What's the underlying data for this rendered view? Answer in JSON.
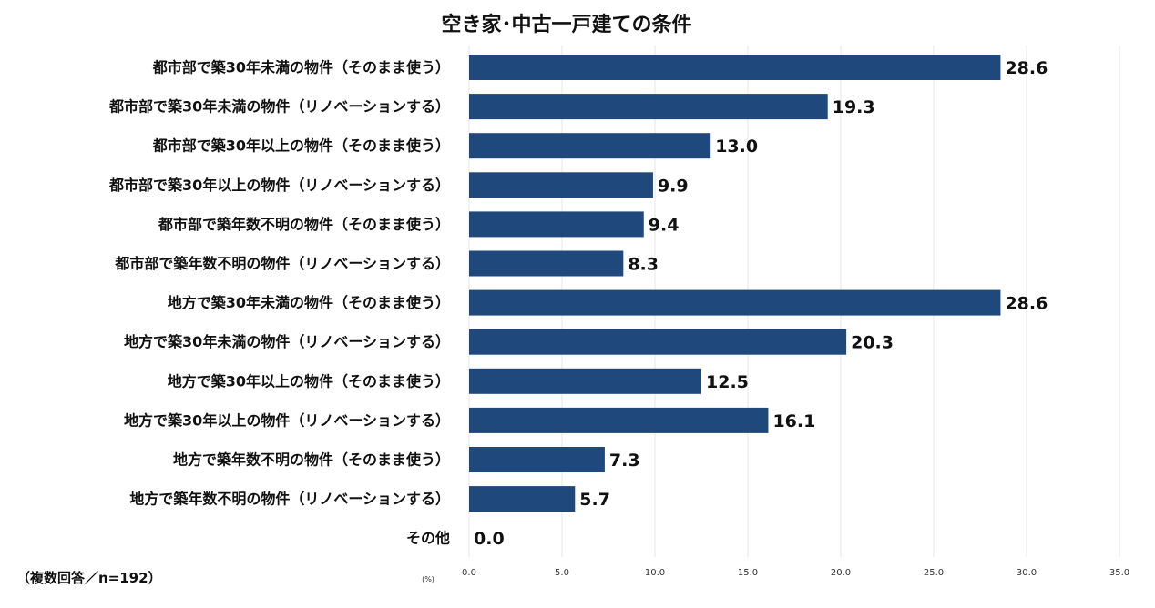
{
  "chart_data": {
    "type": "bar",
    "orientation": "horizontal",
    "title": "空き家･中古一戸建ての条件",
    "categories": [
      "都市部で築30年未満の物件（そのまま使う）",
      "都市部で築30年未満の物件（リノベーションする）",
      "都市部で築30年以上の物件（そのまま使う）",
      "都市部で築30年以上の物件（リノベーションする）",
      "都市部で築年数不明の物件（そのまま使う）",
      "都市部で築年数不明の物件（リノベーションする）",
      "地方で築30年未満の物件（そのまま使う）",
      "地方で築30年未満の物件（リノベーションする）",
      "地方で築30年以上の物件（そのまま使う）",
      "地方で築30年以上の物件（リノベーションする）",
      "地方で築年数不明の物件（そのまま使う）",
      "地方で築年数不明の物件（リノベーションする）",
      "その他"
    ],
    "values": [
      28.6,
      19.3,
      13.0,
      9.9,
      9.4,
      8.3,
      28.6,
      20.3,
      12.5,
      16.1,
      7.3,
      5.7,
      0.0
    ],
    "value_labels": [
      "28.6",
      "19.3",
      "13.0",
      "9.9",
      "9.4",
      "8.3",
      "28.6",
      "20.3",
      "12.5",
      "16.1",
      "7.3",
      "5.7",
      "0.0"
    ],
    "x_ticks": [
      "0.0",
      "5.0",
      "10.0",
      "15.0",
      "20.0",
      "25.0",
      "30.0",
      "35.0"
    ],
    "xlim": [
      0,
      35
    ],
    "unit_label": "(%)",
    "note": "（複数回答／n=192）",
    "bar_color": "#1f497d",
    "grid": true
  }
}
